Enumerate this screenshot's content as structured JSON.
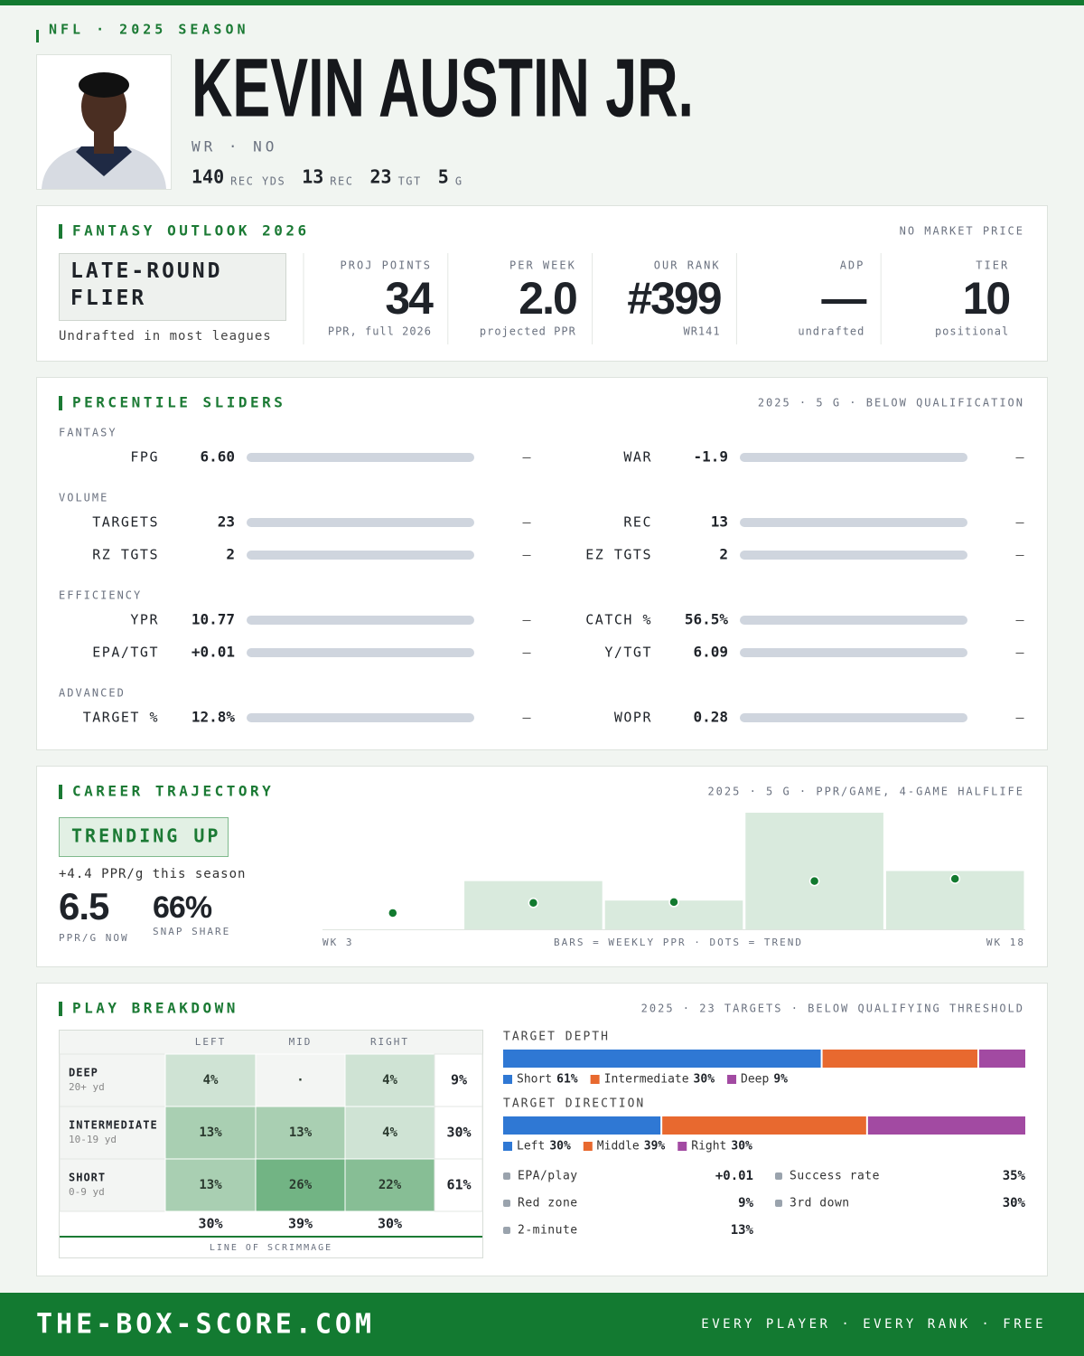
{
  "header": {
    "eyebrow": "NFL · 2025 SEASON",
    "name": "KEVIN AUSTIN JR.",
    "position": "WR · NO",
    "stats": [
      {
        "value": "140",
        "label": "REC YDS"
      },
      {
        "value": "13",
        "label": "REC"
      },
      {
        "value": "23",
        "label": "TGT"
      },
      {
        "value": "5",
        "label": "G"
      }
    ]
  },
  "outlook": {
    "title": "FANTASY OUTLOOK 2026",
    "note": "NO MARKET PRICE",
    "badge": "LATE-ROUND FLIER",
    "badge_note": "Undrafted in most leagues",
    "cells": [
      {
        "label": "PROJ POINTS",
        "value": "34",
        "sub": "PPR, full 2026"
      },
      {
        "label": "PER WEEK",
        "value": "2.0",
        "sub": "projected PPR"
      },
      {
        "label": "OUR RANK",
        "value": "#399",
        "sub": "WR141"
      },
      {
        "label": "ADP",
        "value": "—",
        "sub": "undrafted"
      },
      {
        "label": "TIER",
        "value": "10",
        "sub": "positional"
      }
    ]
  },
  "sliders": {
    "title": "PERCENTILE SLIDERS",
    "note": "2025 · 5 G · BELOW QUALIFICATION",
    "groups": [
      {
        "name": "FANTASY",
        "rows": [
          [
            {
              "label": "FPG",
              "value": "6.60",
              "pct": "—"
            },
            {
              "label": "WAR",
              "value": "-1.9",
              "pct": "—"
            }
          ]
        ]
      },
      {
        "name": "VOLUME",
        "rows": [
          [
            {
              "label": "TARGETS",
              "value": "23",
              "pct": "—"
            },
            {
              "label": "REC",
              "value": "13",
              "pct": "—"
            }
          ],
          [
            {
              "label": "RZ TGTS",
              "value": "2",
              "pct": "—"
            },
            {
              "label": "EZ TGTS",
              "value": "2",
              "pct": "—"
            }
          ]
        ]
      },
      {
        "name": "EFFICIENCY",
        "rows": [
          [
            {
              "label": "YPR",
              "value": "10.77",
              "pct": "—"
            },
            {
              "label": "CATCH %",
              "value": "56.5%",
              "pct": "—"
            }
          ],
          [
            {
              "label": "EPA/TGT",
              "value": "+0.01",
              "pct": "—"
            },
            {
              "label": "Y/TGT",
              "value": "6.09",
              "pct": "—"
            }
          ]
        ]
      },
      {
        "name": "ADVANCED",
        "rows": [
          [
            {
              "label": "TARGET %",
              "value": "12.8%",
              "pct": "—"
            },
            {
              "label": "WOPR",
              "value": "0.28",
              "pct": "—"
            }
          ]
        ]
      }
    ]
  },
  "trajectory": {
    "title": "CAREER TRAJECTORY",
    "note": "2025 · 5 G · PPR/GAME, 4-GAME HALFLIFE",
    "badge": "TRENDING UP",
    "change": "+4.4 PPR/g this season",
    "stats": [
      {
        "value": "6.5",
        "label": "PPR/G NOW"
      },
      {
        "value": "66%",
        "label": "SNAP SHARE"
      }
    ]
  },
  "breakdown": {
    "title": "PLAY BREAKDOWN",
    "note": "2025 · 23 TARGETS · BELOW QUALIFYING THRESHOLD",
    "table": {
      "columns": [
        "LEFT",
        "MID",
        "RIGHT"
      ],
      "rows": [
        {
          "label": "DEEP",
          "sub": "20+ yd",
          "cells": [
            "4%",
            "·",
            "4%"
          ],
          "total": "9%"
        },
        {
          "label": "INTERMEDIATE",
          "sub": "10-19 yd",
          "cells": [
            "13%",
            "13%",
            "4%"
          ],
          "total": "30%"
        },
        {
          "label": "SHORT",
          "sub": "0-9 yd",
          "cells": [
            "13%",
            "26%",
            "22%"
          ],
          "total": "61%"
        }
      ],
      "totals": [
        "30%",
        "39%",
        "30%"
      ],
      "caption": "LINE OF SCRIMMAGE"
    },
    "metrics": [
      {
        "label": "EPA/play",
        "value": "+0.01"
      },
      {
        "label": "Success rate",
        "value": "35%"
      },
      {
        "label": "Red zone",
        "value": "9%"
      },
      {
        "label": "3rd down",
        "value": "30%"
      },
      {
        "label": "2-minute",
        "value": "13%"
      }
    ]
  },
  "chart_data": [
    {
      "type": "bar",
      "categories": [
        "WK 3",
        null,
        null,
        null,
        "WK 18"
      ],
      "values": [
        0,
        6.2,
        3.7,
        15.0,
        7.5
      ],
      "trend": [
        2.1,
        3.4,
        3.5,
        6.2,
        6.5
      ],
      "color": "#d9eadd",
      "trend_color": "#127a2f",
      "caption": "BARS = WEEKLY PPR · DOTS = TREND"
    },
    {
      "type": "stacked-bar",
      "title": "TARGET DEPTH",
      "series": [
        {
          "name": "Short",
          "color": "#2f78d4",
          "values": [
            61
          ],
          "value_labels": [
            "61%"
          ]
        },
        {
          "name": "Intermediate",
          "color": "#e8692f",
          "values": [
            30
          ],
          "value_labels": [
            "30%"
          ]
        },
        {
          "name": "Deep",
          "color": "#a24aa2",
          "values": [
            9
          ],
          "value_labels": [
            "9%"
          ]
        }
      ]
    },
    {
      "type": "stacked-bar",
      "title": "TARGET DIRECTION",
      "series": [
        {
          "name": "Left",
          "color": "#2f78d4",
          "values": [
            30
          ],
          "value_labels": [
            "30%"
          ]
        },
        {
          "name": "Middle",
          "color": "#e8692f",
          "values": [
            39
          ],
          "value_labels": [
            "39%"
          ]
        },
        {
          "name": "Right",
          "color": "#a24aa2",
          "values": [
            30
          ],
          "value_labels": [
            "30%"
          ]
        }
      ]
    }
  ],
  "footer": {
    "site": "THE-BOX-SCORE.COM",
    "tagline": "EVERY PLAYER · EVERY RANK · FREE"
  }
}
